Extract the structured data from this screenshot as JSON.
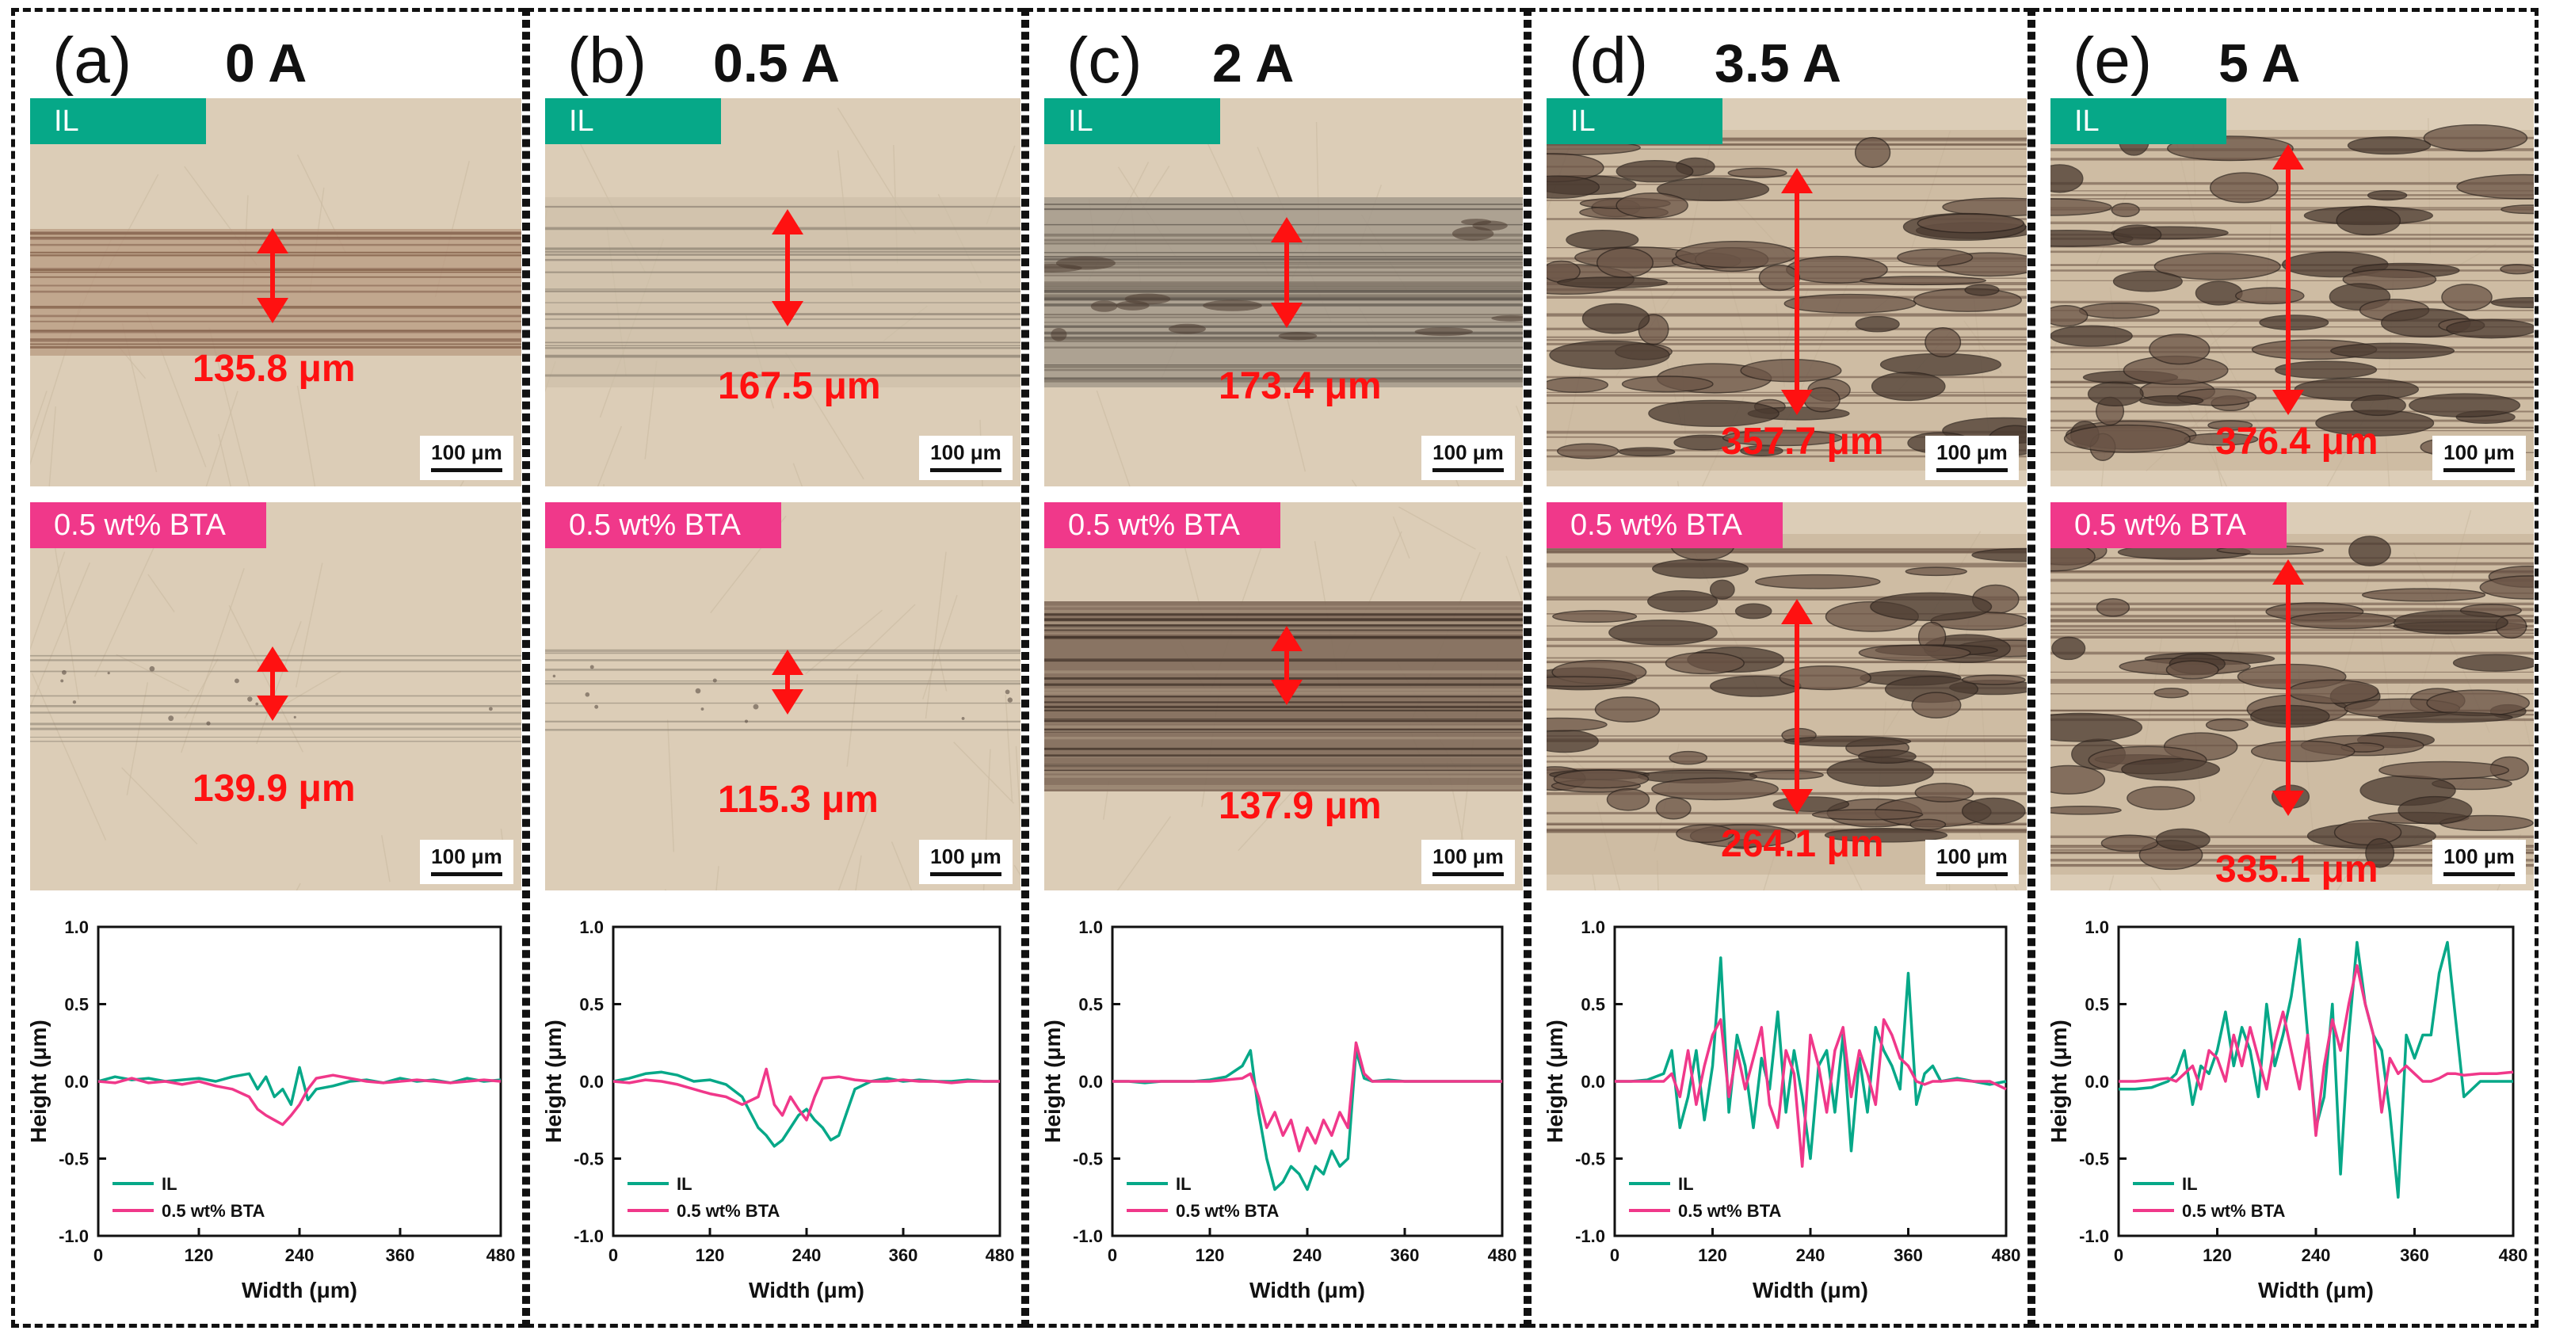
{
  "colors": {
    "il": "#06a888",
    "bta": "#f0388a",
    "measure": "#ff1111",
    "border": "#111111"
  },
  "panels": [
    {
      "label": "(a)",
      "current": "0 A",
      "images": [
        {
          "tag": "IL",
          "measure": "135.8 μm",
          "scale": "100 μm",
          "style": "light-band"
        },
        {
          "tag": "0.5 wt% BTA",
          "measure": "139.9 μm",
          "scale": "100 μm",
          "style": "faint-lines"
        }
      ]
    },
    {
      "label": "(b)",
      "current": "0.5 A",
      "images": [
        {
          "tag": "IL",
          "measure": "167.5 μm",
          "scale": "100 μm",
          "style": "faint-band"
        },
        {
          "tag": "0.5 wt% BTA",
          "measure": "115.3 μm",
          "scale": "100 μm",
          "style": "faint-lines"
        }
      ]
    },
    {
      "label": "(c)",
      "current": "2 A",
      "images": [
        {
          "tag": "IL",
          "measure": "173.4 μm",
          "scale": "100 μm",
          "style": "grey-band"
        },
        {
          "tag": "0.5 wt% BTA",
          "measure": "137.9 μm",
          "scale": "100 μm",
          "style": "dark-band"
        }
      ]
    },
    {
      "label": "(d)",
      "current": "3.5 A",
      "images": [
        {
          "tag": "IL",
          "measure": "357.7 μm",
          "scale": "100 μm",
          "style": "heavy-wear"
        },
        {
          "tag": "0.5 wt% BTA",
          "measure": "264.1 μm",
          "scale": "100 μm",
          "style": "heavy-wear"
        }
      ]
    },
    {
      "label": "(e)",
      "current": "5 A",
      "images": [
        {
          "tag": "IL",
          "measure": "376.4 μm",
          "scale": "100 μm",
          "style": "heavy-wear"
        },
        {
          "tag": "0.5 wt% BTA",
          "measure": "335.1 μm",
          "scale": "100 μm",
          "style": "heavy-wear"
        }
      ]
    }
  ],
  "chart_data": [
    {
      "type": "line",
      "panel": "(a)",
      "xlabel": "Width (μm)",
      "ylabel": "Height (μm)",
      "xlim": [
        0,
        480
      ],
      "ylim": [
        -1.0,
        1.0
      ],
      "xticks": [
        0,
        120,
        240,
        360,
        480
      ],
      "yticks": [
        -1.0,
        -0.5,
        0.0,
        0.5,
        1.0
      ],
      "legend": "bottom-left",
      "series": [
        {
          "name": "IL",
          "color": "#06a888",
          "x": [
            0,
            20,
            40,
            60,
            80,
            100,
            120,
            140,
            160,
            180,
            190,
            200,
            210,
            220,
            230,
            240,
            250,
            260,
            280,
            300,
            320,
            340,
            360,
            380,
            400,
            420,
            440,
            460,
            480
          ],
          "y": [
            0.0,
            0.03,
            0.01,
            0.02,
            0.0,
            0.01,
            0.02,
            0.0,
            0.03,
            0.05,
            -0.05,
            0.03,
            -0.1,
            -0.05,
            -0.15,
            0.09,
            -0.12,
            -0.05,
            -0.03,
            0.0,
            0.01,
            -0.01,
            0.02,
            0.0,
            0.01,
            -0.01,
            0.02,
            0.0,
            0.01
          ]
        },
        {
          "name": "0.5 wt% BTA",
          "color": "#f0388a",
          "x": [
            0,
            20,
            40,
            60,
            80,
            100,
            120,
            140,
            160,
            180,
            190,
            200,
            210,
            220,
            230,
            240,
            250,
            260,
            280,
            300,
            320,
            340,
            360,
            380,
            400,
            420,
            440,
            460,
            480
          ],
          "y": [
            0.0,
            -0.01,
            0.02,
            -0.01,
            0.0,
            -0.02,
            0.0,
            -0.03,
            -0.05,
            -0.1,
            -0.18,
            -0.22,
            -0.25,
            -0.28,
            -0.22,
            -0.15,
            -0.05,
            0.02,
            0.04,
            0.02,
            0.0,
            -0.01,
            0.0,
            0.01,
            0.0,
            -0.01,
            0.0,
            0.01,
            0.0
          ]
        }
      ],
      "legend_labels": [
        "IL",
        "0.5 wt% BTA"
      ]
    },
    {
      "type": "line",
      "panel": "(b)",
      "xlabel": "Width (μm)",
      "ylabel": "Height (μm)",
      "xlim": [
        0,
        480
      ],
      "ylim": [
        -1.0,
        1.0
      ],
      "xticks": [
        0,
        120,
        240,
        360,
        480
      ],
      "yticks": [
        -1.0,
        -0.5,
        0.0,
        0.5,
        1.0
      ],
      "legend": "bottom-left",
      "series": [
        {
          "name": "IL",
          "color": "#06a888",
          "x": [
            0,
            20,
            40,
            60,
            80,
            100,
            120,
            140,
            160,
            170,
            180,
            190,
            200,
            210,
            220,
            230,
            240,
            250,
            260,
            270,
            280,
            290,
            300,
            320,
            340,
            360,
            380,
            400,
            420,
            440,
            460,
            480
          ],
          "y": [
            0.0,
            0.02,
            0.05,
            0.06,
            0.04,
            0.0,
            0.01,
            -0.02,
            -0.1,
            -0.2,
            -0.3,
            -0.35,
            -0.42,
            -0.38,
            -0.3,
            -0.22,
            -0.18,
            -0.25,
            -0.3,
            -0.38,
            -0.35,
            -0.2,
            -0.05,
            0.0,
            0.02,
            0.0,
            0.01,
            0.0,
            0.0,
            0.01,
            0.0,
            0.0
          ]
        },
        {
          "name": "0.5 wt% BTA",
          "color": "#f0388a",
          "x": [
            0,
            20,
            40,
            60,
            80,
            100,
            120,
            140,
            160,
            180,
            190,
            200,
            210,
            220,
            230,
            240,
            250,
            260,
            280,
            300,
            320,
            340,
            360,
            380,
            400,
            420,
            440,
            460,
            480
          ],
          "y": [
            0.0,
            -0.01,
            0.01,
            0.0,
            -0.02,
            -0.05,
            -0.08,
            -0.1,
            -0.15,
            -0.1,
            0.08,
            -0.15,
            -0.22,
            -0.1,
            -0.18,
            -0.25,
            -0.1,
            0.02,
            0.03,
            0.01,
            0.0,
            0.0,
            0.01,
            0.0,
            0.0,
            -0.01,
            0.0,
            0.0,
            0.0
          ]
        }
      ],
      "legend_labels": [
        "IL",
        "0.5 wt% BTA"
      ]
    },
    {
      "type": "line",
      "panel": "(c)",
      "xlabel": "Width (μm)",
      "ylabel": "Height (μm)",
      "xlim": [
        0,
        480
      ],
      "ylim": [
        -1.0,
        1.0
      ],
      "xticks": [
        0,
        120,
        240,
        360,
        480
      ],
      "yticks": [
        -1.0,
        -0.5,
        0.0,
        0.5,
        1.0
      ],
      "legend": "bottom-left",
      "series": [
        {
          "name": "IL",
          "color": "#06a888",
          "x": [
            0,
            20,
            40,
            60,
            80,
            100,
            120,
            140,
            160,
            170,
            180,
            190,
            200,
            210,
            220,
            230,
            240,
            250,
            260,
            270,
            280,
            290,
            300,
            310,
            320,
            340,
            360,
            380,
            400,
            420,
            440,
            460,
            480
          ],
          "y": [
            0.0,
            0.0,
            -0.01,
            0.0,
            0.0,
            0.0,
            0.01,
            0.03,
            0.1,
            0.2,
            -0.2,
            -0.5,
            -0.7,
            -0.65,
            -0.55,
            -0.6,
            -0.7,
            -0.55,
            -0.6,
            -0.45,
            -0.55,
            -0.5,
            0.2,
            0.02,
            0.0,
            0.01,
            0.0,
            0.0,
            0.0,
            0.0,
            0.0,
            0.0,
            0.0
          ]
        },
        {
          "name": "0.5 wt% BTA",
          "color": "#f0388a",
          "x": [
            0,
            20,
            40,
            60,
            80,
            100,
            120,
            140,
            160,
            170,
            180,
            190,
            200,
            210,
            220,
            230,
            240,
            250,
            260,
            270,
            280,
            290,
            300,
            310,
            320,
            340,
            360,
            380,
            400,
            420,
            440,
            460,
            480
          ],
          "y": [
            0.0,
            0.0,
            0.0,
            0.0,
            0.0,
            0.0,
            0.0,
            0.01,
            0.02,
            0.05,
            -0.1,
            -0.3,
            -0.2,
            -0.35,
            -0.25,
            -0.45,
            -0.3,
            -0.4,
            -0.25,
            -0.35,
            -0.2,
            -0.3,
            0.25,
            0.05,
            0.0,
            0.0,
            0.0,
            0.0,
            0.0,
            0.0,
            0.0,
            0.0,
            0.0
          ]
        }
      ],
      "legend_labels": [
        "IL",
        "0.5 wt% BTA"
      ]
    },
    {
      "type": "line",
      "panel": "(d)",
      "xlabel": "Width (μm)",
      "ylabel": "Height (μm)",
      "xlim": [
        0,
        480
      ],
      "ylim": [
        -1.0,
        1.0
      ],
      "xticks": [
        0,
        120,
        240,
        360,
        480
      ],
      "yticks": [
        -1.0,
        -0.5,
        0.0,
        0.5,
        1.0
      ],
      "legend": "bottom-left",
      "series": [
        {
          "name": "IL",
          "color": "#06a888",
          "x": [
            0,
            20,
            40,
            60,
            70,
            80,
            90,
            100,
            110,
            120,
            130,
            140,
            150,
            160,
            170,
            180,
            190,
            200,
            210,
            220,
            230,
            240,
            250,
            260,
            270,
            280,
            290,
            300,
            310,
            320,
            330,
            340,
            350,
            360,
            370,
            380,
            390,
            400,
            420,
            440,
            460,
            480
          ],
          "y": [
            0.0,
            0.0,
            0.01,
            0.05,
            0.2,
            -0.3,
            -0.1,
            0.2,
            -0.25,
            0.1,
            0.8,
            -0.2,
            0.3,
            0.1,
            -0.3,
            0.15,
            -0.05,
            0.45,
            -0.2,
            0.2,
            -0.1,
            -0.5,
            0.1,
            0.2,
            -0.2,
            0.3,
            -0.45,
            0.15,
            -0.2,
            0.35,
            0.2,
            0.1,
            -0.05,
            0.7,
            -0.15,
            0.05,
            0.1,
            0.0,
            0.02,
            0.0,
            -0.02,
            0.0
          ]
        },
        {
          "name": "0.5 wt% BTA",
          "color": "#f0388a",
          "x": [
            0,
            20,
            40,
            60,
            70,
            80,
            90,
            100,
            110,
            120,
            130,
            140,
            150,
            160,
            170,
            180,
            190,
            200,
            210,
            220,
            230,
            240,
            250,
            260,
            270,
            280,
            290,
            300,
            310,
            320,
            330,
            340,
            350,
            360,
            370,
            380,
            390,
            400,
            420,
            440,
            460,
            480
          ],
          "y": [
            0.0,
            0.0,
            0.0,
            0.0,
            0.05,
            -0.1,
            0.2,
            -0.15,
            0.1,
            0.3,
            0.4,
            -0.1,
            0.2,
            -0.05,
            0.15,
            0.35,
            -0.15,
            -0.3,
            0.2,
            0.05,
            -0.55,
            0.3,
            0.1,
            -0.2,
            0.2,
            0.35,
            -0.1,
            0.2,
            0.05,
            -0.15,
            0.4,
            0.3,
            0.15,
            0.1,
            0.0,
            -0.02,
            0.0,
            0.0,
            0.01,
            0.0,
            0.0,
            -0.05
          ]
        }
      ],
      "legend_labels": [
        "IL",
        "0.5 wt% BTA"
      ]
    },
    {
      "type": "line",
      "panel": "(e)",
      "xlabel": "Width (μm)",
      "ylabel": "Height (μm)",
      "xlim": [
        0,
        480
      ],
      "ylim": [
        -1.0,
        1.0
      ],
      "xticks": [
        0,
        120,
        240,
        360,
        480
      ],
      "yticks": [
        -1.0,
        -0.5,
        0.0,
        0.5,
        1.0
      ],
      "legend": "bottom-left",
      "series": [
        {
          "name": "IL",
          "color": "#06a888",
          "x": [
            0,
            20,
            40,
            60,
            70,
            80,
            90,
            100,
            110,
            120,
            130,
            140,
            150,
            160,
            170,
            180,
            190,
            200,
            210,
            220,
            230,
            240,
            250,
            260,
            270,
            280,
            290,
            300,
            310,
            320,
            330,
            340,
            350,
            360,
            370,
            380,
            390,
            400,
            410,
            420,
            440,
            460,
            480
          ],
          "y": [
            -0.05,
            -0.05,
            -0.04,
            0.0,
            0.05,
            0.2,
            -0.15,
            0.1,
            0.05,
            0.2,
            0.45,
            0.1,
            0.35,
            0.2,
            -0.1,
            0.5,
            0.1,
            0.3,
            0.55,
            0.92,
            0.3,
            -0.3,
            -0.1,
            0.5,
            -0.6,
            0.3,
            0.9,
            0.5,
            0.3,
            0.2,
            -0.2,
            -0.75,
            0.3,
            0.15,
            0.3,
            0.3,
            0.7,
            0.9,
            0.4,
            -0.1,
            0.0,
            0.0,
            0.0
          ]
        },
        {
          "name": "0.5 wt% BTA",
          "color": "#f0388a",
          "x": [
            0,
            20,
            40,
            60,
            70,
            80,
            90,
            100,
            110,
            120,
            130,
            140,
            150,
            160,
            170,
            180,
            190,
            200,
            210,
            220,
            230,
            240,
            250,
            260,
            270,
            280,
            290,
            300,
            310,
            320,
            330,
            340,
            350,
            360,
            370,
            380,
            390,
            400,
            410,
            420,
            440,
            460,
            480
          ],
          "y": [
            0.0,
            0.0,
            0.01,
            0.02,
            0.0,
            0.05,
            0.1,
            -0.05,
            0.2,
            0.15,
            0.0,
            0.3,
            0.1,
            0.35,
            0.15,
            -0.05,
            0.25,
            0.45,
            0.2,
            -0.05,
            0.3,
            -0.35,
            0.1,
            0.4,
            0.2,
            0.5,
            0.75,
            0.5,
            0.3,
            -0.2,
            0.15,
            0.05,
            0.1,
            0.05,
            0.0,
            0.0,
            0.02,
            0.05,
            0.05,
            0.04,
            0.05,
            0.05,
            0.06
          ]
        }
      ],
      "legend_labels": [
        "IL",
        "0.5 wt% BTA"
      ]
    }
  ]
}
